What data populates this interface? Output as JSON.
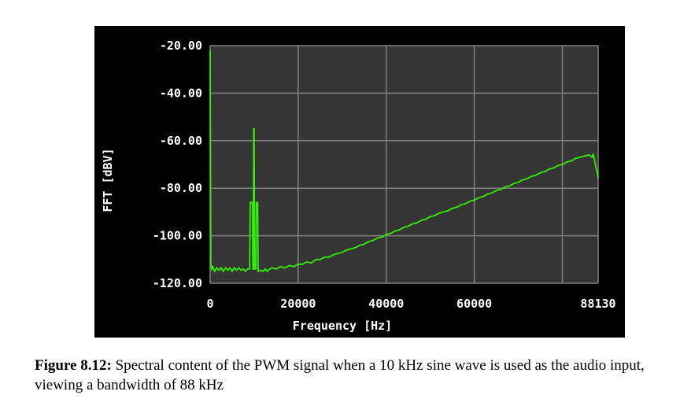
{
  "figure": {
    "caption_label": "Figure 8.12:",
    "caption_text": "Spectral content of the PWM signal when a 10 kHz sine wave is used as the audio input, viewing a bandwidth of 88 kHz"
  },
  "colors": {
    "panel_background": "#000000",
    "plot_background": "#353535",
    "grid": "#808080",
    "trace": "#33ee00",
    "text": "#ffffff"
  },
  "chart_data": {
    "type": "line",
    "title": "",
    "xlabel": "Frequency [Hz]",
    "ylabel": "FFT [dBV]",
    "xlim": [
      0,
      88130
    ],
    "ylim": [
      -120,
      -20
    ],
    "x_ticks": [
      0,
      20000,
      40000,
      60000,
      88130
    ],
    "x_tick_labels": [
      "0",
      "20000",
      "40000",
      "60000",
      "88130"
    ],
    "x_grid": [
      0,
      20000,
      40000,
      60000,
      80000,
      88130
    ],
    "y_ticks": [
      -20,
      -40,
      -60,
      -80,
      -100,
      -120
    ],
    "y_tick_labels": [
      "-20.00",
      "-40.00",
      "-60.00",
      "-80.00",
      "-100.00",
      "-120.00"
    ],
    "grid": true,
    "series": [
      {
        "points": [
          [
            0,
            -22
          ],
          [
            80,
            -66
          ],
          [
            160,
            -112
          ],
          [
            300,
            -114
          ],
          [
            600,
            -113
          ],
          [
            1000,
            -115
          ],
          [
            1500,
            -113.5
          ],
          [
            2000,
            -114.5
          ],
          [
            2500,
            -113.5
          ],
          [
            3000,
            -115
          ],
          [
            3500,
            -113.5
          ],
          [
            4000,
            -114.5
          ],
          [
            4500,
            -113.5
          ],
          [
            5000,
            -115
          ],
          [
            5500,
            -113.5
          ],
          [
            6000,
            -114.5
          ],
          [
            6500,
            -113.5
          ],
          [
            7000,
            -114.5
          ],
          [
            7500,
            -114
          ],
          [
            8000,
            -115
          ],
          [
            8500,
            -114
          ],
          [
            9000,
            -114
          ],
          [
            9100,
            -86
          ],
          [
            9600,
            -86
          ],
          [
            9700,
            -114
          ],
          [
            9800,
            -114
          ],
          [
            9900,
            -55
          ],
          [
            10000,
            -55
          ],
          [
            10100,
            -114
          ],
          [
            10400,
            -114
          ],
          [
            10500,
            -86
          ],
          [
            10800,
            -86
          ],
          [
            10900,
            -115
          ],
          [
            11500,
            -114.5
          ],
          [
            12000,
            -115
          ],
          [
            12500,
            -114
          ],
          [
            13000,
            -115
          ],
          [
            13500,
            -114
          ],
          [
            14000,
            -113.5
          ],
          [
            15000,
            -114
          ],
          [
            16000,
            -113
          ],
          [
            17000,
            -113.5
          ],
          [
            18000,
            -112.5
          ],
          [
            19000,
            -113
          ],
          [
            20000,
            -112
          ],
          [
            21000,
            -112
          ],
          [
            22000,
            -111
          ],
          [
            23000,
            -111.5
          ],
          [
            24000,
            -110
          ],
          [
            25000,
            -110
          ],
          [
            26000,
            -109
          ],
          [
            27000,
            -109
          ],
          [
            28000,
            -108
          ],
          [
            29000,
            -107.5
          ],
          [
            30000,
            -107
          ],
          [
            31000,
            -106
          ],
          [
            32000,
            -105.5
          ],
          [
            33000,
            -105
          ],
          [
            34000,
            -104
          ],
          [
            35000,
            -103.5
          ],
          [
            36000,
            -102.5
          ],
          [
            37000,
            -102
          ],
          [
            38000,
            -101
          ],
          [
            39000,
            -100.5
          ],
          [
            40000,
            -99.5
          ],
          [
            41000,
            -99
          ],
          [
            42000,
            -98
          ],
          [
            43000,
            -97.5
          ],
          [
            44000,
            -96.5
          ],
          [
            45000,
            -96
          ],
          [
            46000,
            -95
          ],
          [
            47000,
            -94.5
          ],
          [
            48000,
            -93.5
          ],
          [
            49000,
            -93
          ],
          [
            50000,
            -92
          ],
          [
            51000,
            -91.5
          ],
          [
            52000,
            -90.5
          ],
          [
            53000,
            -90
          ],
          [
            54000,
            -89.5
          ],
          [
            55000,
            -88.5
          ],
          [
            56000,
            -88
          ],
          [
            57000,
            -87
          ],
          [
            58000,
            -86.5
          ],
          [
            59000,
            -85.5
          ],
          [
            60000,
            -85
          ],
          [
            61000,
            -84
          ],
          [
            62000,
            -83.5
          ],
          [
            63000,
            -82.5
          ],
          [
            64000,
            -82
          ],
          [
            65000,
            -81
          ],
          [
            66000,
            -80.5
          ],
          [
            67000,
            -79.5
          ],
          [
            68000,
            -79
          ],
          [
            69000,
            -78
          ],
          [
            70000,
            -77.5
          ],
          [
            71000,
            -76.5
          ],
          [
            72000,
            -76
          ],
          [
            73000,
            -75
          ],
          [
            74000,
            -74.5
          ],
          [
            75000,
            -73.5
          ],
          [
            76000,
            -73
          ],
          [
            77000,
            -72
          ],
          [
            78000,
            -71.5
          ],
          [
            79000,
            -70.5
          ],
          [
            80000,
            -70
          ],
          [
            81000,
            -69
          ],
          [
            82000,
            -68.5
          ],
          [
            83000,
            -67.5
          ],
          [
            84000,
            -67
          ],
          [
            85000,
            -66.5
          ],
          [
            86000,
            -66
          ],
          [
            86800,
            -67
          ],
          [
            87000,
            -65.5
          ],
          [
            87300,
            -68
          ],
          [
            87600,
            -71
          ],
          [
            88000,
            -74
          ],
          [
            88130,
            -76
          ]
        ]
      }
    ]
  }
}
